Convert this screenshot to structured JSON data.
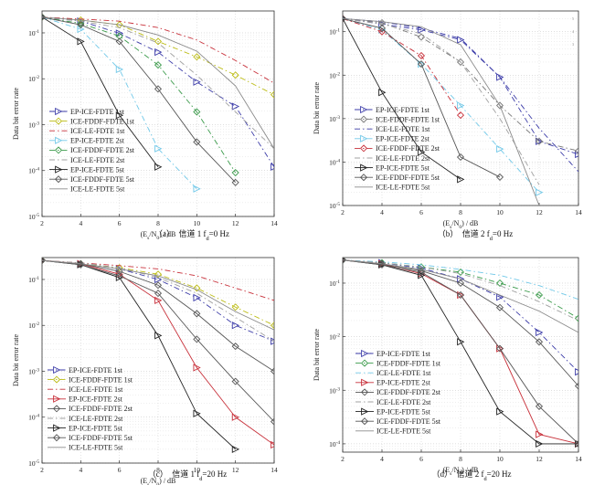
{
  "figure": {
    "captions": [
      "（a）　信道 1 f_d=0 Hz",
      "（b）　信道 2 f_d=0 Hz",
      "（c）　信道 1 f_d=20 Hz",
      "（d）　信道 2 f_d=20 Hz"
    ]
  },
  "chart_data": [
    {
      "type": "line",
      "caption": "（a）　信道 1 f_d=0 Hz",
      "xlabel": "(E_s/N_0) / dB",
      "ylabel": "Data bit error rate",
      "xlim": [
        2,
        14
      ],
      "ylim": [
        1e-05,
        0.3
      ],
      "yscale": "log",
      "x_ticks": [
        "2",
        "4",
        "6",
        "8",
        "10",
        "12",
        "14"
      ],
      "y_ticks": [
        "10^-1",
        "10^-2",
        "10^-3",
        "10^-4",
        "10^-5"
      ],
      "grid": true,
      "legend_position": "left",
      "series": [
        {
          "name": "EP-ICE-FDTE 1st",
          "color": "#3b3ba8",
          "dash": "6,3,1.5,3",
          "marker": "tri-right",
          "x": [
            2,
            4,
            6,
            8,
            10,
            12,
            14
          ],
          "y": [
            0.22,
            0.18,
            0.098,
            0.038,
            0.0085,
            0.0025,
            0.00012
          ]
        },
        {
          "name": "ICE-FDDF-FDTE 1st",
          "color": "#bcbc14",
          "dash": "6,3,1.5,3",
          "marker": "diamond",
          "x": [
            2,
            4,
            6,
            8,
            10,
            12,
            14
          ],
          "y": [
            0.22,
            0.19,
            0.15,
            0.065,
            0.03,
            0.012,
            0.0045
          ]
        },
        {
          "name": "ICE-LE-FDTE 1st",
          "color": "#c8303a",
          "dash": "6,3,1.5,3",
          "marker": "none",
          "x": [
            2,
            4,
            6,
            8,
            10,
            12,
            14
          ],
          "y": [
            0.22,
            0.2,
            0.18,
            0.13,
            0.07,
            0.025,
            0.008
          ]
        },
        {
          "name": "EP-ICE-FDTE 2st",
          "color": "#70c8e8",
          "dash": "6,3,1.5,3",
          "marker": "tri-right",
          "x": [
            2,
            4,
            6,
            8,
            10
          ],
          "y": [
            0.22,
            0.12,
            0.016,
            0.0003,
            4e-05
          ]
        },
        {
          "name": "ICE-FDDF-FDTE 2st",
          "color": "#3a9a4a",
          "dash": "6,3,1.5,3",
          "marker": "diamond",
          "x": [
            2,
            4,
            6,
            8,
            10,
            12
          ],
          "y": [
            0.22,
            0.16,
            0.085,
            0.02,
            0.0019,
            9e-05
          ]
        },
        {
          "name": "ICE-LE-FDTE 2st",
          "color": "#a0a0a0",
          "dash": "6,3,1.5,3",
          "marker": "none",
          "x": [
            2,
            4,
            6,
            8,
            10,
            12,
            14
          ],
          "y": [
            0.22,
            0.18,
            0.13,
            0.06,
            0.012,
            0.0019,
            0.0003
          ]
        },
        {
          "name": "EP-ICE-FDTE 5st",
          "color": "#222222",
          "dash": "none",
          "marker": "tri-right",
          "x": [
            2,
            4,
            6,
            8
          ],
          "y": [
            0.22,
            0.065,
            0.0016,
            0.00012
          ]
        },
        {
          "name": "ICE-FDDF-FDTE 5st",
          "color": "#555555",
          "dash": "none",
          "marker": "diamond",
          "x": [
            2,
            4,
            6,
            8,
            10,
            12
          ],
          "y": [
            0.22,
            0.15,
            0.065,
            0.006,
            0.00042,
            5.5e-05
          ]
        },
        {
          "name": "ICE-LE-FDTE 5st",
          "color": "#8a8a8a",
          "dash": "none",
          "marker": "none",
          "x": [
            2,
            4,
            6,
            8,
            10,
            12,
            14
          ],
          "y": [
            0.22,
            0.19,
            0.15,
            0.09,
            0.04,
            0.007,
            0.0003
          ]
        }
      ]
    },
    {
      "type": "line",
      "caption": "（b）　信道 2 f_d=0 Hz",
      "xlabel": "(E_s/N_0) / dB",
      "ylabel": "Data bit error rate",
      "xlim": [
        2,
        14
      ],
      "ylim": [
        1e-05,
        0.3
      ],
      "yscale": "log",
      "x_ticks": [
        "2",
        "4",
        "6",
        "8",
        "10",
        "12",
        "14"
      ],
      "y_ticks": [
        "10^-1",
        "10^-2",
        "10^-3",
        "10^-4",
        "10^-5"
      ],
      "grid": true,
      "legend_position": "left",
      "series": [
        {
          "name": "EP-ICE-FDTE 1st",
          "color": "#3b3ba8",
          "dash": "6,3,1.5,3",
          "marker": "tri-right",
          "x": [
            2,
            4,
            6,
            8,
            10,
            12,
            14
          ],
          "y": [
            0.2,
            0.15,
            0.11,
            0.065,
            0.009,
            0.0003,
            0.00015
          ]
        },
        {
          "name": "ICE-FDDF-FDTE 1st",
          "color": "#777777",
          "dash": "6,3,1.5,3",
          "marker": "diamond",
          "x": [
            2,
            4,
            6,
            8,
            10,
            12,
            14
          ],
          "y": [
            0.2,
            0.16,
            0.075,
            0.02,
            0.002,
            0.0003,
            0.00018
          ]
        },
        {
          "name": "ICE-LE-FDTE 1st",
          "color": "#3b3ba8",
          "dash": "6,3,1.5,3",
          "marker": "none",
          "x": [
            2,
            4,
            6,
            8,
            10,
            12,
            14
          ],
          "y": [
            0.2,
            0.17,
            0.12,
            0.07,
            0.009,
            0.0006,
            6e-05
          ]
        },
        {
          "name": "EP-ICE-FDTE 2st",
          "color": "#70c8e8",
          "dash": "6,3,1.5,3",
          "marker": "tri-right",
          "x": [
            2,
            4,
            6,
            8,
            10,
            12
          ],
          "y": [
            0.2,
            0.11,
            0.018,
            0.002,
            0.0002,
            2e-05
          ]
        },
        {
          "name": "ICE-FDDF-FDTE 2st",
          "color": "#c8303a",
          "dash": "6,3,1.5,3",
          "marker": "diamond",
          "x": [
            2,
            4,
            6,
            8
          ],
          "y": [
            0.2,
            0.1,
            0.028,
            0.0012
          ]
        },
        {
          "name": "ICE-LE-FDTE 2st",
          "color": "#a0a0a0",
          "dash": "6,3,1.5,3",
          "marker": "none",
          "x": [
            2,
            4,
            6,
            8,
            10,
            12
          ],
          "y": [
            0.2,
            0.15,
            0.09,
            0.02,
            0.001,
            3e-05
          ]
        },
        {
          "name": "EP-ICE-FDTE 5st",
          "color": "#222222",
          "dash": "none",
          "marker": "tri-right",
          "x": [
            2,
            4,
            6,
            8
          ],
          "y": [
            0.2,
            0.004,
            0.00017,
            4e-05
          ]
        },
        {
          "name": "ICE-FDDF-FDTE 5st",
          "color": "#555555",
          "dash": "none",
          "marker": "diamond",
          "x": [
            2,
            4,
            6,
            8,
            10
          ],
          "y": [
            0.2,
            0.12,
            0.018,
            0.00013,
            4.5e-05
          ]
        },
        {
          "name": "ICE-LE-FDTE 5st",
          "color": "#8a8a8a",
          "dash": "none",
          "marker": "none",
          "x": [
            2,
            4,
            6,
            8,
            10,
            12
          ],
          "y": [
            0.2,
            0.17,
            0.13,
            0.05,
            0.002,
            1e-05
          ]
        }
      ],
      "decorations": [
        "5",
        "4",
        "3"
      ]
    },
    {
      "type": "line",
      "caption": "（c）　信道 1 f_d=20 Hz",
      "xlabel": "(E_s/N_0) / dB",
      "ylabel": "Data bit error rate",
      "xlim": [
        2,
        14
      ],
      "ylim": [
        1e-05,
        0.3
      ],
      "yscale": "log",
      "x_ticks": [
        "2",
        "4",
        "6",
        "8",
        "10",
        "12",
        "14"
      ],
      "y_ticks": [
        "10^-1",
        "10^-2",
        "10^-3",
        "10^-4",
        "10^-5"
      ],
      "grid": true,
      "legend_position": "left",
      "series": [
        {
          "name": "EP-ICE-FDTE 1st",
          "color": "#3b3ba8",
          "dash": "6,3,1.5,3",
          "marker": "tri-right",
          "x": [
            2,
            4,
            6,
            8,
            10,
            12,
            14
          ],
          "y": [
            0.26,
            0.22,
            0.17,
            0.1,
            0.04,
            0.01,
            0.0045
          ]
        },
        {
          "name": "ICE-FDDF-FDTE 1st",
          "color": "#bcbc14",
          "dash": "6,3,1.5,3",
          "marker": "diamond",
          "x": [
            2,
            4,
            6,
            8,
            10,
            12,
            14
          ],
          "y": [
            0.26,
            0.22,
            0.18,
            0.13,
            0.065,
            0.025,
            0.01
          ]
        },
        {
          "name": "ICE-LE-FDTE 1st",
          "color": "#c8303a",
          "dash": "6,3,1.5,3",
          "marker": "none",
          "x": [
            2,
            4,
            6,
            8,
            10,
            12,
            14
          ],
          "y": [
            0.26,
            0.23,
            0.2,
            0.17,
            0.12,
            0.065,
            0.035
          ]
        },
        {
          "name": "EP-ICE-FDTE 2st",
          "color": "#c8303a",
          "dash": "none",
          "marker": "tri-right",
          "x": [
            2,
            4,
            6,
            8,
            10,
            12,
            14
          ],
          "y": [
            0.26,
            0.22,
            0.13,
            0.035,
            0.0012,
            0.0001,
            2.5e-05
          ]
        },
        {
          "name": "ICE-FDDF-FDTE 2st",
          "color": "#555555",
          "dash": "none",
          "marker": "diamond",
          "x": [
            2,
            4,
            6,
            8,
            10,
            12,
            14
          ],
          "y": [
            0.26,
            0.22,
            0.15,
            0.075,
            0.018,
            0.0035,
            0.001
          ]
        },
        {
          "name": "ICE-LE-FDTE 2st",
          "color": "#a0a0a0",
          "dash": "6,3,1.5,3",
          "marker": "none",
          "x": [
            2,
            4,
            6,
            8,
            10,
            12,
            14
          ],
          "y": [
            0.26,
            0.23,
            0.18,
            0.11,
            0.05,
            0.015,
            0.0045
          ]
        },
        {
          "name": "EP-ICE-FDTE 5st",
          "color": "#222222",
          "dash": "none",
          "marker": "tri-right",
          "x": [
            2,
            4,
            6,
            8,
            10,
            12
          ],
          "y": [
            0.26,
            0.21,
            0.11,
            0.006,
            0.00012,
            2e-05
          ]
        },
        {
          "name": "ICE-FDDF-FDTE 5st",
          "color": "#555555",
          "dash": "none",
          "marker": "diamond",
          "x": [
            2,
            4,
            6,
            8,
            10,
            12,
            14
          ],
          "y": [
            0.26,
            0.21,
            0.12,
            0.05,
            0.005,
            0.0006,
            8e-05
          ]
        },
        {
          "name": "ICE-LE-FDTE 5st",
          "color": "#8a8a8a",
          "dash": "none",
          "marker": "none",
          "x": [
            2,
            4,
            6,
            8,
            10,
            12,
            14
          ],
          "y": [
            0.26,
            0.22,
            0.17,
            0.12,
            0.06,
            0.02,
            0.008
          ]
        }
      ]
    },
    {
      "type": "line",
      "caption": "（d）　信道 2 f_d=20 Hz",
      "xlabel": "(E_s/N_0) / dB",
      "ylabel": "Data bit error rate",
      "xlim": [
        2,
        14
      ],
      "ylim": [
        7e-05,
        0.3
      ],
      "yscale": "log",
      "x_ticks": [
        "2",
        "4",
        "6",
        "8",
        "10",
        "12",
        "14"
      ],
      "y_ticks": [
        "10^-1",
        "10^-2",
        "10^-3",
        "10^-4"
      ],
      "grid": true,
      "legend_position": "left",
      "series": [
        {
          "name": "EP-ICE-FDTE 1st",
          "color": "#3b3ba8",
          "dash": "6,3,1.5,3",
          "marker": "tri-right",
          "x": [
            2,
            4,
            6,
            8,
            10,
            12,
            14
          ],
          "y": [
            0.27,
            0.24,
            0.19,
            0.12,
            0.055,
            0.012,
            0.0022
          ]
        },
        {
          "name": "ICE-FDDF-FDTE 1st",
          "color": "#3a9a4a",
          "dash": "6,3,1.5,3",
          "marker": "diamond",
          "x": [
            2,
            4,
            6,
            8,
            10,
            12,
            14
          ],
          "y": [
            0.27,
            0.24,
            0.2,
            0.16,
            0.1,
            0.06,
            0.022
          ]
        },
        {
          "name": "ICE-LE-FDTE 1st",
          "color": "#70c8e8",
          "dash": "6,3,1.5,3",
          "marker": "none",
          "x": [
            2,
            4,
            6,
            8,
            10,
            12,
            14
          ],
          "y": [
            0.27,
            0.25,
            0.22,
            0.18,
            0.14,
            0.09,
            0.05
          ]
        },
        {
          "name": "EP-ICE-FDTE 2st",
          "color": "#c8303a",
          "dash": "none",
          "marker": "tri-right",
          "x": [
            2,
            4,
            6,
            8,
            10,
            12,
            14
          ],
          "y": [
            0.27,
            0.23,
            0.15,
            0.06,
            0.006,
            0.00015,
            0.0001
          ]
        },
        {
          "name": "ICE-FDDF-FDTE 2st",
          "color": "#555555",
          "dash": "none",
          "marker": "diamond",
          "x": [
            2,
            4,
            6,
            8,
            10,
            12,
            14
          ],
          "y": [
            0.27,
            0.23,
            0.17,
            0.1,
            0.035,
            0.008,
            0.0012
          ]
        },
        {
          "name": "ICE-LE-FDTE 2st",
          "color": "#a0a0a0",
          "dash": "6,3,1.5,3",
          "marker": "none",
          "x": [
            2,
            4,
            6,
            8,
            10,
            12,
            14
          ],
          "y": [
            0.27,
            0.24,
            0.2,
            0.15,
            0.09,
            0.045,
            0.02
          ]
        },
        {
          "name": "EP-ICE-FDTE 5st",
          "color": "#222222",
          "dash": "none",
          "marker": "tri-right",
          "x": [
            2,
            4,
            6,
            8,
            10,
            12,
            14
          ],
          "y": [
            0.27,
            0.22,
            0.14,
            0.008,
            0.0004,
            0.0001,
            0.0001
          ]
        },
        {
          "name": "ICE-FDDF-FDTE 5st",
          "color": "#555555",
          "dash": "none",
          "marker": "diamond",
          "x": [
            2,
            4,
            6,
            8,
            10,
            12,
            14
          ],
          "y": [
            0.27,
            0.22,
            0.16,
            0.06,
            0.006,
            0.0005,
            0.0001
          ]
        },
        {
          "name": "ICE-LE-FDTE 5st",
          "color": "#8a8a8a",
          "dash": "none",
          "marker": "none",
          "x": [
            2,
            4,
            6,
            8,
            10,
            12,
            14
          ],
          "y": [
            0.27,
            0.23,
            0.18,
            0.12,
            0.06,
            0.03,
            0.012
          ]
        }
      ]
    }
  ]
}
